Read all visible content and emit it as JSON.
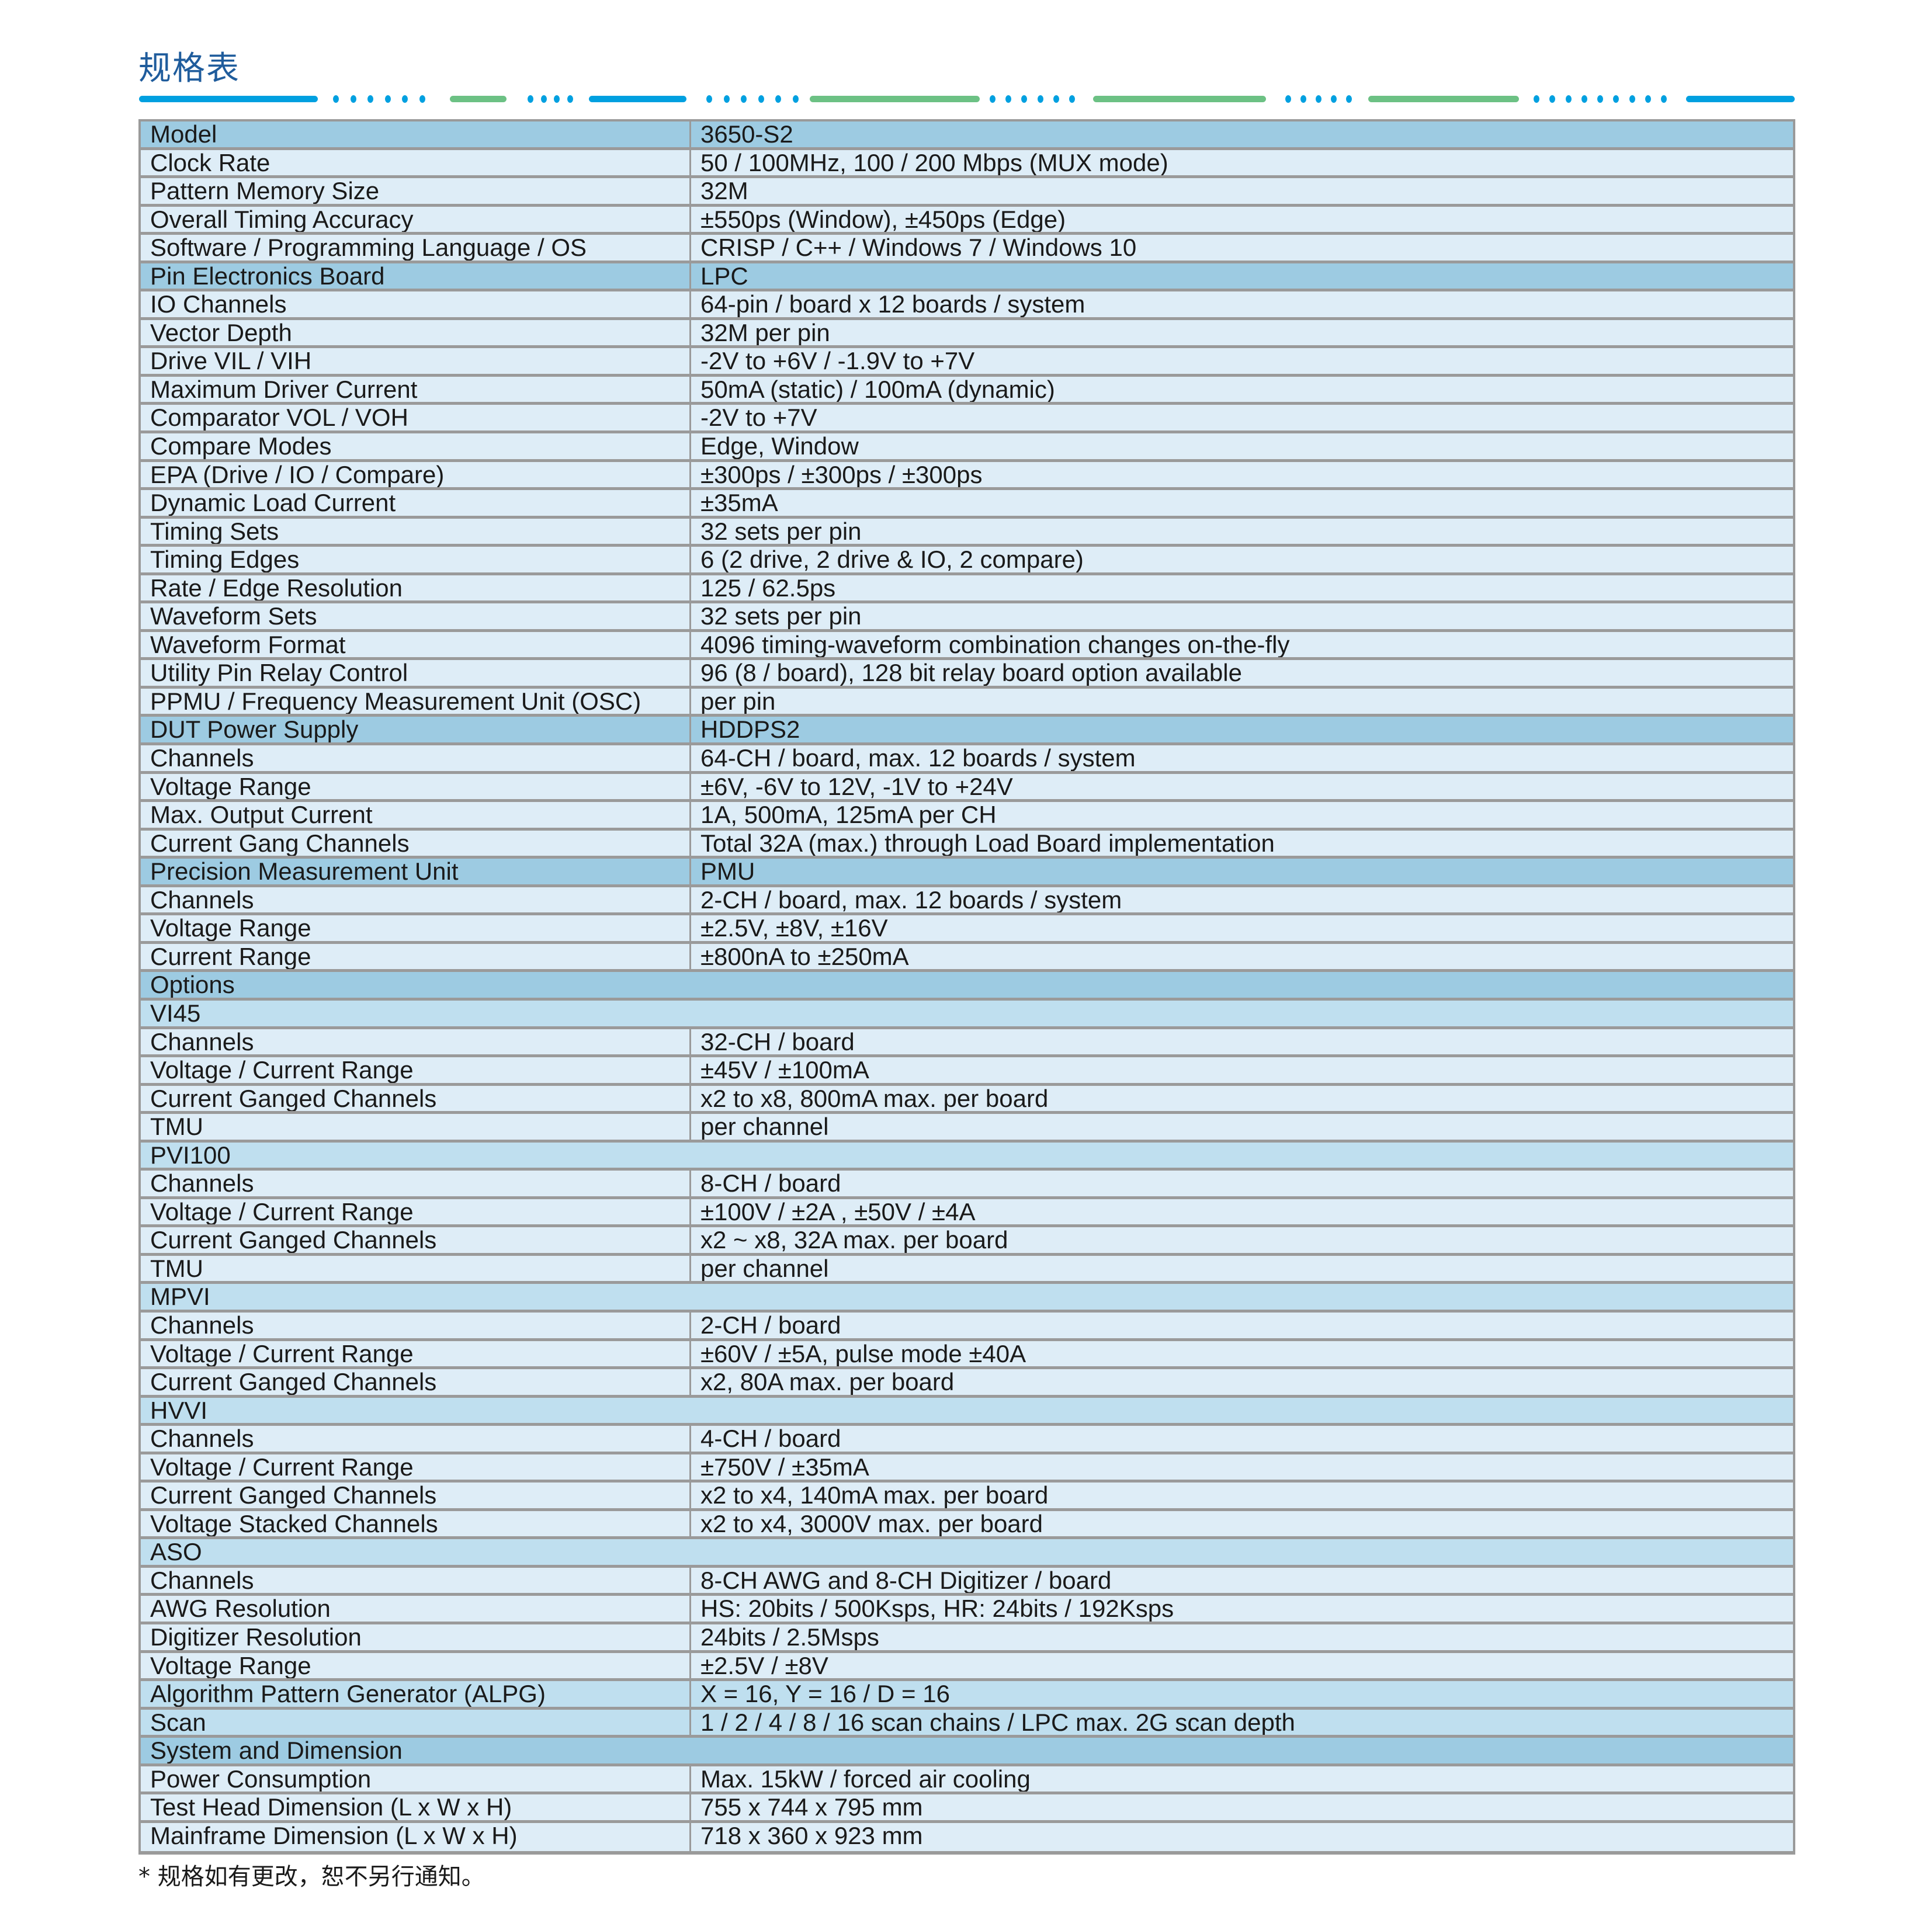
{
  "title": "规格表",
  "colors": {
    "title": "#1f5c9c",
    "deco_blue": "#00a0e0",
    "deco_green": "#6cc184",
    "header_row": "#9dcbe2",
    "sub_row": "#bfdfef",
    "data_row": "#deedf7",
    "grid": "#9a9a9a"
  },
  "rows": [
    {
      "type": "h",
      "label": "Model",
      "value": "3650-S2"
    },
    {
      "type": "d",
      "label": "Clock Rate",
      "value": "50 / 100MHz, 100 / 200 Mbps (MUX mode)"
    },
    {
      "type": "d",
      "label": "Pattern Memory Size",
      "value": "32M"
    },
    {
      "type": "d",
      "label": "Overall Timing Accuracy",
      "value": "±550ps (Window), ±450ps (Edge)"
    },
    {
      "type": "d",
      "label": "Software / Programming Language / OS",
      "value": "CRISP / C++ / Windows 7 / Windows 10"
    },
    {
      "type": "h",
      "label": "Pin Electronics Board",
      "value": "LPC"
    },
    {
      "type": "d",
      "label": "IO Channels",
      "value": "64-pin / board x 12 boards / system"
    },
    {
      "type": "d",
      "label": "Vector Depth",
      "value": "32M per pin"
    },
    {
      "type": "d",
      "label": "Drive VIL / VIH",
      "value": "-2V to +6V / -1.9V to +7V"
    },
    {
      "type": "d",
      "label": "Maximum Driver Current",
      "value": "50mA (static) / 100mA (dynamic)"
    },
    {
      "type": "d",
      "label": "Comparator VOL / VOH",
      "value": "-2V to +7V"
    },
    {
      "type": "d",
      "label": "Compare Modes",
      "value": "Edge, Window"
    },
    {
      "type": "d",
      "label": "EPA (Drive / IO / Compare)",
      "value": "±300ps / ±300ps / ±300ps"
    },
    {
      "type": "d",
      "label": "Dynamic Load Current",
      "value": "±35mA"
    },
    {
      "type": "d",
      "label": "Timing Sets",
      "value": "32 sets per pin"
    },
    {
      "type": "d",
      "label": "Timing Edges",
      "value": "6 (2 drive, 2 drive & IO, 2 compare)"
    },
    {
      "type": "d",
      "label": "Rate / Edge Resolution",
      "value": "125 / 62.5ps"
    },
    {
      "type": "d",
      "label": "Waveform Sets",
      "value": "32 sets per pin"
    },
    {
      "type": "d",
      "label": "Waveform Format",
      "value": "4096 timing-waveform combination changes on-the-fly"
    },
    {
      "type": "d",
      "label": "Utility Pin Relay Control",
      "value": "96 (8 / board), 128 bit relay board option available"
    },
    {
      "type": "d",
      "label": "PPMU / Frequency Measurement Unit (OSC)",
      "value": "per pin"
    },
    {
      "type": "h",
      "label": "DUT Power Supply",
      "value": "HDDPS2"
    },
    {
      "type": "d",
      "label": "Channels",
      "value": "64-CH / board, max. 12 boards / system"
    },
    {
      "type": "d",
      "label": "Voltage Range",
      "value": "±6V, -6V to 12V, -1V to +24V"
    },
    {
      "type": "d",
      "label": "Max. Output Current",
      "value": "1A, 500mA, 125mA per CH"
    },
    {
      "type": "d",
      "label": "Current Gang Channels",
      "value": "Total 32A (max.) through Load Board implementation"
    },
    {
      "type": "h",
      "label": "Precision Measurement Unit",
      "value": "PMU"
    },
    {
      "type": "d",
      "label": "Channels",
      "value": "2-CH / board, max. 12 boards / system"
    },
    {
      "type": "d",
      "label": "Voltage Range",
      "value": "±2.5V, ±8V, ±16V"
    },
    {
      "type": "d",
      "label": "Current Range",
      "value": "±800nA to ±250mA"
    },
    {
      "type": "s",
      "label": "Options"
    },
    {
      "type": "m",
      "label": "VI45"
    },
    {
      "type": "d",
      "label": "Channels",
      "value": "32-CH / board"
    },
    {
      "type": "d",
      "label": "Voltage / Current Range",
      "value": "±45V / ±100mA"
    },
    {
      "type": "d",
      "label": "Current Ganged Channels",
      "value": "x2 to x8, 800mA max. per board"
    },
    {
      "type": "d",
      "label": "TMU",
      "value": "per channel"
    },
    {
      "type": "m",
      "label": "PVI100"
    },
    {
      "type": "d",
      "label": "Channels",
      "value": "8-CH /  board"
    },
    {
      "type": "d",
      "label": "Voltage / Current Range",
      "value": "±100V / ±2A , ±50V / ±4A"
    },
    {
      "type": "d",
      "label": "Current Ganged Channels",
      "value": "x2 ~ x8, 32A max. per board"
    },
    {
      "type": "d",
      "label": "TMU",
      "value": "per channel"
    },
    {
      "type": "m",
      "label": "MPVI"
    },
    {
      "type": "d",
      "label": "Channels",
      "value": "2-CH / board"
    },
    {
      "type": "d",
      "label": "Voltage / Current Range",
      "value": "±60V / ±5A, pulse mode ±40A"
    },
    {
      "type": "d",
      "label": "Current Ganged Channels",
      "value": "x2, 80A max. per board"
    },
    {
      "type": "m",
      "label": "HVVI"
    },
    {
      "type": "d",
      "label": "Channels",
      "value": "4-CH / board"
    },
    {
      "type": "d",
      "label": "Voltage / Current Range",
      "value": "±750V / ±35mA"
    },
    {
      "type": "d",
      "label": "Current Ganged Channels",
      "value": "x2 to x4, 140mA max. per board"
    },
    {
      "type": "d",
      "label": "Voltage Stacked Channels",
      "value": "x2 to x4, 3000V max. per board"
    },
    {
      "type": "m",
      "label": "ASO"
    },
    {
      "type": "d",
      "label": "Channels",
      "value": "8-CH AWG and 8-CH Digitizer / board"
    },
    {
      "type": "d",
      "label": "AWG Resolution",
      "value": "HS: 20bits / 500Ksps, HR: 24bits / 192Ksps"
    },
    {
      "type": "d",
      "label": "Digitizer Resolution",
      "value": "24bits / 2.5Msps"
    },
    {
      "type": "d",
      "label": "Voltage Range",
      "value": "±2.5V / ±8V"
    },
    {
      "type": "m2",
      "label": "Algorithm Pattern Generator (ALPG)",
      "value": "X = 16, Y = 16 / D = 16"
    },
    {
      "type": "m2",
      "label": "Scan",
      "value": "1 / 2 / 4 / 8 / 16 scan chains / LPC max. 2G scan depth"
    },
    {
      "type": "s",
      "label": "System and Dimension"
    },
    {
      "type": "d",
      "label": "Power Consumption",
      "value": "Max. 15kW / forced air cooling"
    },
    {
      "type": "d",
      "label": "Test Head Dimension (L x W x H)",
      "value": "755 x 744 x 795 mm"
    },
    {
      "type": "d",
      "label": "Mainframe Dimension (L x W x H)",
      "value": "718 x 360 x 923 mm"
    }
  ],
  "footnote": "* 规格如有更改，恕不另行通知。"
}
